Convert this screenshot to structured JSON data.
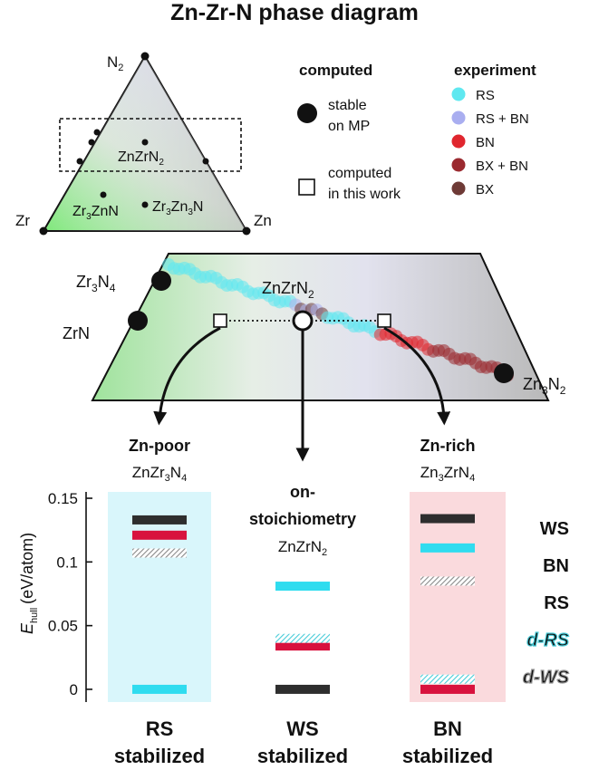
{
  "title": "Zn-Zr-N phase diagram",
  "ternary": {
    "vertices": {
      "top": "N",
      "top_sub": "2",
      "left": "Zr",
      "right": "Zn"
    },
    "phases": {
      "znzrn2": {
        "base": "ZnZrN",
        "sub": "2"
      },
      "zr3znn": {
        "a": "Zr",
        "a_sub": "3",
        "b": "ZnN"
      },
      "zr3zn3n": {
        "a": "Zr",
        "a_sub": "3",
        "b": "Zn",
        "b_sub": "3",
        "c": "N"
      }
    }
  },
  "legend": {
    "computed_title": "computed",
    "stable_l1": "stable",
    "stable_l2": "on MP",
    "thiswork_l1": "computed",
    "thiswork_l2": "in this work",
    "experiment_title": "experiment",
    "experiment": [
      {
        "label": "RS",
        "color": "#5fe8f0"
      },
      {
        "label": "RS + BN",
        "color": "#a9aef0"
      },
      {
        "label": "BN",
        "color": "#e0262e"
      },
      {
        "label": "BX + BN",
        "color": "#9b2a30"
      },
      {
        "label": "BX",
        "color": "#6e3a36"
      }
    ]
  },
  "slice": {
    "zr3n4": {
      "a": "Zr",
      "a_sub": "3",
      "b": "N",
      "b_sub": "4"
    },
    "zrn": "ZrN",
    "znzrn2": {
      "base": "ZnZrN",
      "sub": "2"
    },
    "zn3n2": {
      "a": "Zn",
      "a_sub": "3",
      "b": "N",
      "b_sub": "2"
    }
  },
  "compositions": {
    "zn_poor": {
      "title": "Zn-poor",
      "formula": {
        "a": "ZnZr",
        "a_sub": "3",
        "b": "N",
        "b_sub": "4"
      }
    },
    "on_stoich": {
      "title_l1": "on-",
      "title_l2": "stoichiometry",
      "formula": {
        "base": "ZnZrN",
        "sub": "2"
      }
    },
    "zn_rich": {
      "title": "Zn-rich",
      "formula": {
        "a": "Zn",
        "a_sub": "3",
        "b": "ZrN",
        "b_sub": "4"
      }
    }
  },
  "colors": {
    "WS": "#2e2e2e",
    "BN": "#d8123e",
    "RS": "#2fdcef",
    "dRS": "#48ccd8",
    "dWS": "#9a9a9a",
    "rs_panel": "#d9f6fb",
    "bn_panel": "#fadadd"
  },
  "chart_data": {
    "type": "energy_levels",
    "ylabel": "(eV/atom)",
    "ylabel_symbol": "E",
    "ylabel_subscript": "hull",
    "ylim": [
      -0.01,
      0.155
    ],
    "yticks": [
      "0",
      "0.05",
      "0.1",
      "0.15"
    ],
    "yticks_values": [
      0,
      0.05,
      0.1,
      0.15
    ],
    "categories": [
      "Zn-poor",
      "on-stoichiometry",
      "Zn-rich"
    ],
    "series": [
      {
        "name": "WS",
        "values": [
          0.133,
          0.0,
          0.134
        ]
      },
      {
        "name": "BN",
        "values": [
          0.121,
          0.034,
          0.0
        ]
      },
      {
        "name": "RS",
        "values": [
          0.0,
          0.081,
          0.111
        ]
      },
      {
        "name": "d-RS",
        "values": [
          null,
          0.04,
          0.008
        ]
      },
      {
        "name": "d-WS",
        "values": [
          0.107,
          null,
          0.085
        ]
      }
    ],
    "legend": [
      "WS",
      "BN",
      "RS",
      "d-RS",
      "d-WS"
    ],
    "bottom_labels": [
      {
        "l1": "RS",
        "l2": "stabilized",
        "color": "#2fdcef"
      },
      {
        "l1": "WS",
        "l2": "stabilized",
        "color": "#2e2e2e"
      },
      {
        "l1": "BN",
        "l2": "stabilized",
        "color": "#d8123e"
      }
    ]
  }
}
